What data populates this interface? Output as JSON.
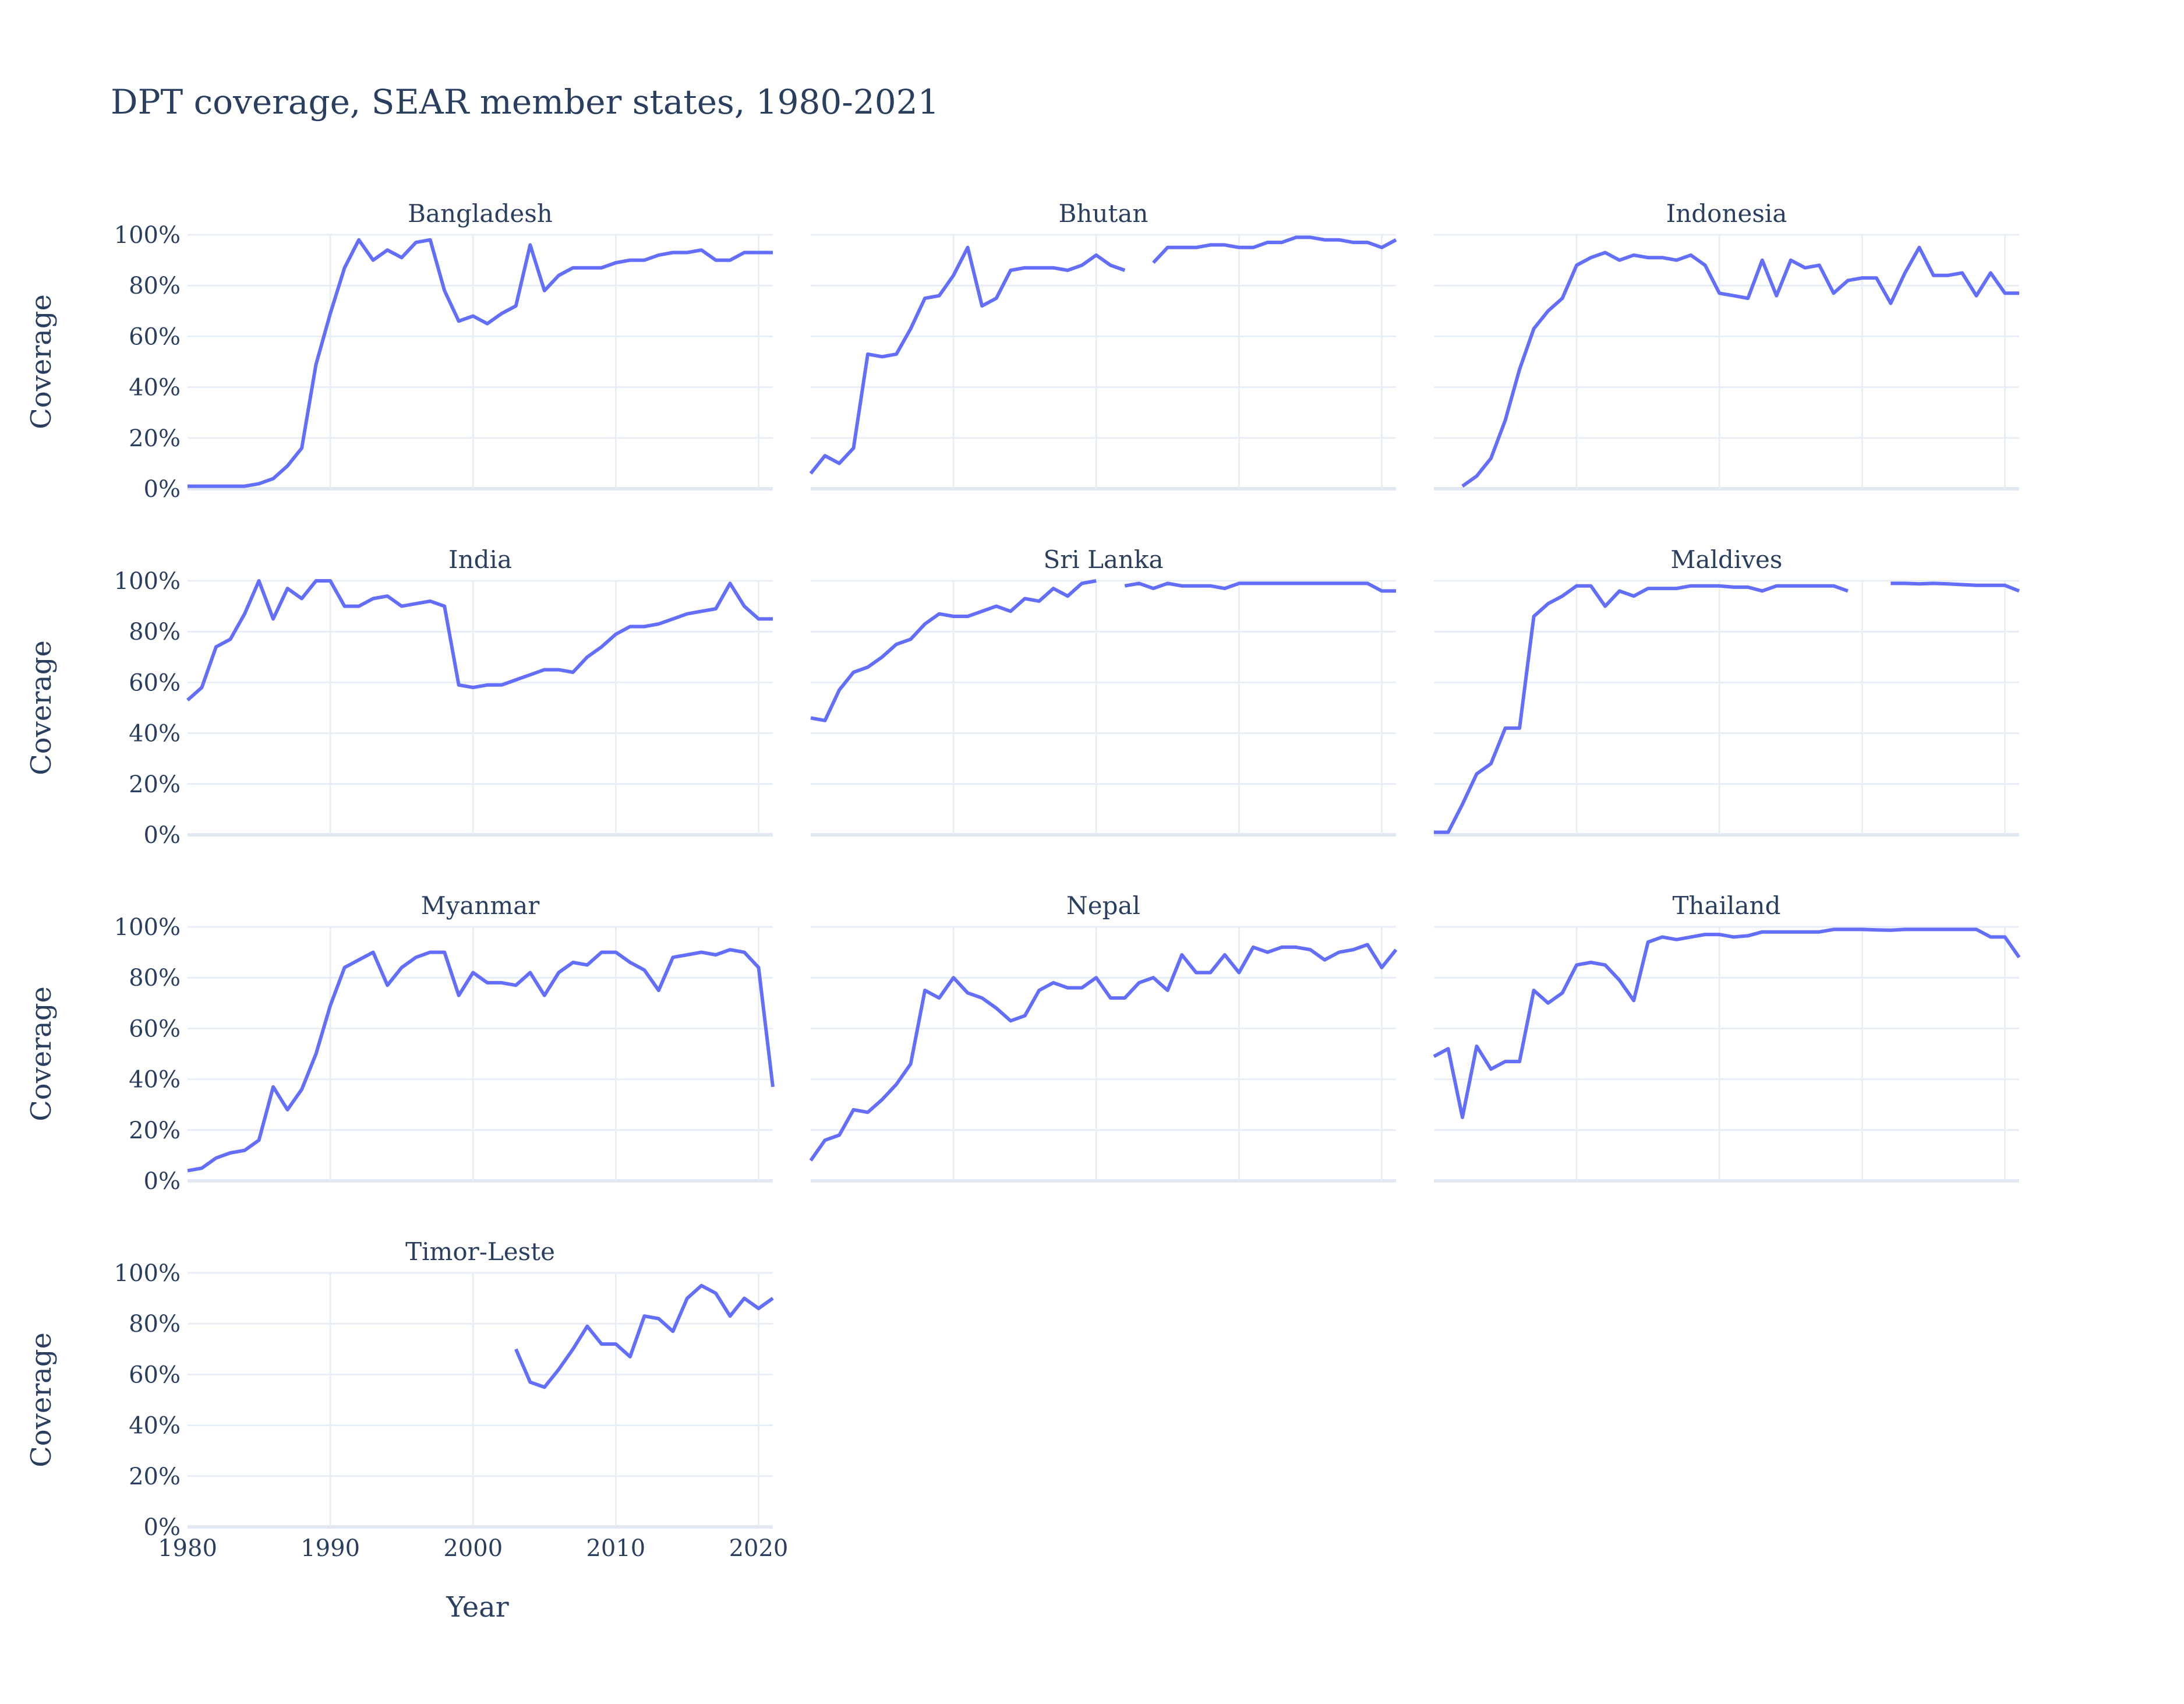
{
  "chart_data": {
    "type": "line",
    "title": "DPT coverage, SEAR member states, 1980-2021",
    "xlabel": "Year",
    "ylabel": "Coverage",
    "xlim": [
      1980,
      2021
    ],
    "ylim": [
      0,
      100
    ],
    "x_ticks": [
      1980,
      1990,
      2000,
      2010,
      2020
    ],
    "y_ticks": [
      0,
      20,
      40,
      60,
      80,
      100
    ],
    "y_tick_suffix": "%",
    "grid": true,
    "line_color": "#636efa",
    "x": [
      1980,
      1981,
      1982,
      1983,
      1984,
      1985,
      1986,
      1987,
      1988,
      1989,
      1990,
      1991,
      1992,
      1993,
      1994,
      1995,
      1996,
      1997,
      1998,
      1999,
      2000,
      2001,
      2002,
      2003,
      2004,
      2005,
      2006,
      2007,
      2008,
      2009,
      2010,
      2011,
      2012,
      2013,
      2014,
      2015,
      2016,
      2017,
      2018,
      2019,
      2020,
      2021
    ],
    "series": [
      {
        "name": "Bangladesh",
        "values": [
          1,
          1,
          1,
          1,
          1,
          2,
          4,
          9,
          16,
          49,
          69,
          87,
          98,
          90,
          94,
          91,
          97,
          98,
          78,
          66,
          68,
          65,
          69,
          72,
          96,
          78,
          84,
          87,
          87,
          87,
          89,
          90,
          90,
          92,
          93,
          93,
          94,
          90,
          90,
          93,
          93,
          93
        ]
      },
      {
        "name": "Bhutan",
        "values": [
          6,
          13,
          10,
          16,
          53,
          52,
          53,
          63,
          75,
          76,
          84,
          95,
          72,
          75,
          86,
          87,
          87,
          87,
          86,
          88,
          92,
          88,
          86,
          null,
          89,
          95,
          95,
          95,
          96,
          96,
          95,
          95,
          97,
          97,
          99,
          99,
          98,
          98,
          97,
          97,
          95,
          98
        ]
      },
      {
        "name": "Indonesia",
        "values": [
          null,
          null,
          1,
          5,
          12,
          27,
          47,
          63,
          70,
          75,
          88,
          91,
          93,
          90,
          92,
          91,
          91,
          90,
          92,
          88,
          77,
          76,
          75,
          90,
          76,
          90,
          87,
          88,
          77,
          82,
          83,
          83,
          73,
          85,
          95,
          84,
          84,
          85,
          76,
          85,
          77,
          77
        ]
      },
      {
        "name": "India",
        "values": [
          53,
          58,
          74,
          77,
          87,
          100,
          85,
          97,
          93,
          100,
          100,
          90,
          90,
          93,
          94,
          90,
          91,
          92,
          90,
          59,
          58,
          59,
          59,
          61,
          63,
          65,
          65,
          64,
          70,
          74,
          79,
          82,
          82,
          83,
          85,
          87,
          88,
          89,
          99,
          90,
          85,
          85
        ]
      },
      {
        "name": "Sri Lanka",
        "values": [
          46,
          45,
          57,
          64,
          66,
          70,
          75,
          77,
          83,
          87,
          86,
          86,
          88,
          90,
          88,
          93,
          92,
          97,
          94,
          99,
          100,
          null,
          98,
          99,
          97,
          99,
          98,
          98,
          98,
          97,
          99,
          99,
          99,
          99,
          99,
          99,
          99,
          99,
          99,
          99,
          96,
          96
        ]
      },
      {
        "name": "Maldives",
        "values": [
          1,
          1,
          12,
          24,
          28,
          42,
          42,
          86,
          91,
          94,
          98,
          98,
          90,
          96,
          94,
          97,
          97,
          97,
          98,
          98,
          98,
          97.5,
          97.5,
          96,
          98,
          98,
          98,
          98,
          98,
          96,
          null,
          null,
          99,
          99,
          98.8,
          99,
          98.8,
          98.5,
          98.2,
          98.2,
          98.2,
          96
        ]
      },
      {
        "name": "Myanmar",
        "values": [
          4,
          5,
          9,
          11,
          12,
          16,
          37,
          28,
          36,
          50,
          69,
          84,
          87,
          90,
          77,
          84,
          88,
          90,
          90,
          73,
          82,
          78,
          78,
          77,
          82,
          73,
          82,
          86,
          85,
          90,
          90,
          86,
          83,
          75,
          88,
          89,
          90,
          89,
          91,
          90,
          84,
          37
        ]
      },
      {
        "name": "Nepal",
        "values": [
          8,
          16,
          18,
          28,
          27,
          32,
          38,
          46,
          75,
          72,
          80,
          74,
          72,
          68,
          63,
          65,
          75,
          78,
          76,
          76,
          80,
          72,
          72,
          78,
          80,
          75,
          89,
          82,
          82,
          89,
          82,
          92,
          90,
          92,
          92,
          91,
          87,
          90,
          91,
          93,
          84,
          91
        ]
      },
      {
        "name": "Thailand",
        "values": [
          49,
          52,
          25,
          53,
          44,
          47,
          47,
          75,
          70,
          74,
          85,
          86,
          85,
          79,
          71,
          94,
          96,
          95,
          96,
          97,
          97,
          96,
          96.5,
          98,
          98,
          98,
          98,
          98,
          99,
          99,
          99,
          98.8,
          98.7,
          99,
          99,
          99,
          99,
          99,
          99,
          96,
          96,
          88
        ]
      },
      {
        "name": "Timor-Leste",
        "values": [
          null,
          null,
          null,
          null,
          null,
          null,
          null,
          null,
          null,
          null,
          null,
          null,
          null,
          null,
          null,
          null,
          null,
          null,
          null,
          null,
          null,
          null,
          null,
          70,
          57,
          55,
          62,
          70,
          79,
          72,
          72,
          67,
          83,
          82,
          77,
          90,
          95,
          92,
          83,
          90,
          86,
          90
        ]
      }
    ]
  }
}
